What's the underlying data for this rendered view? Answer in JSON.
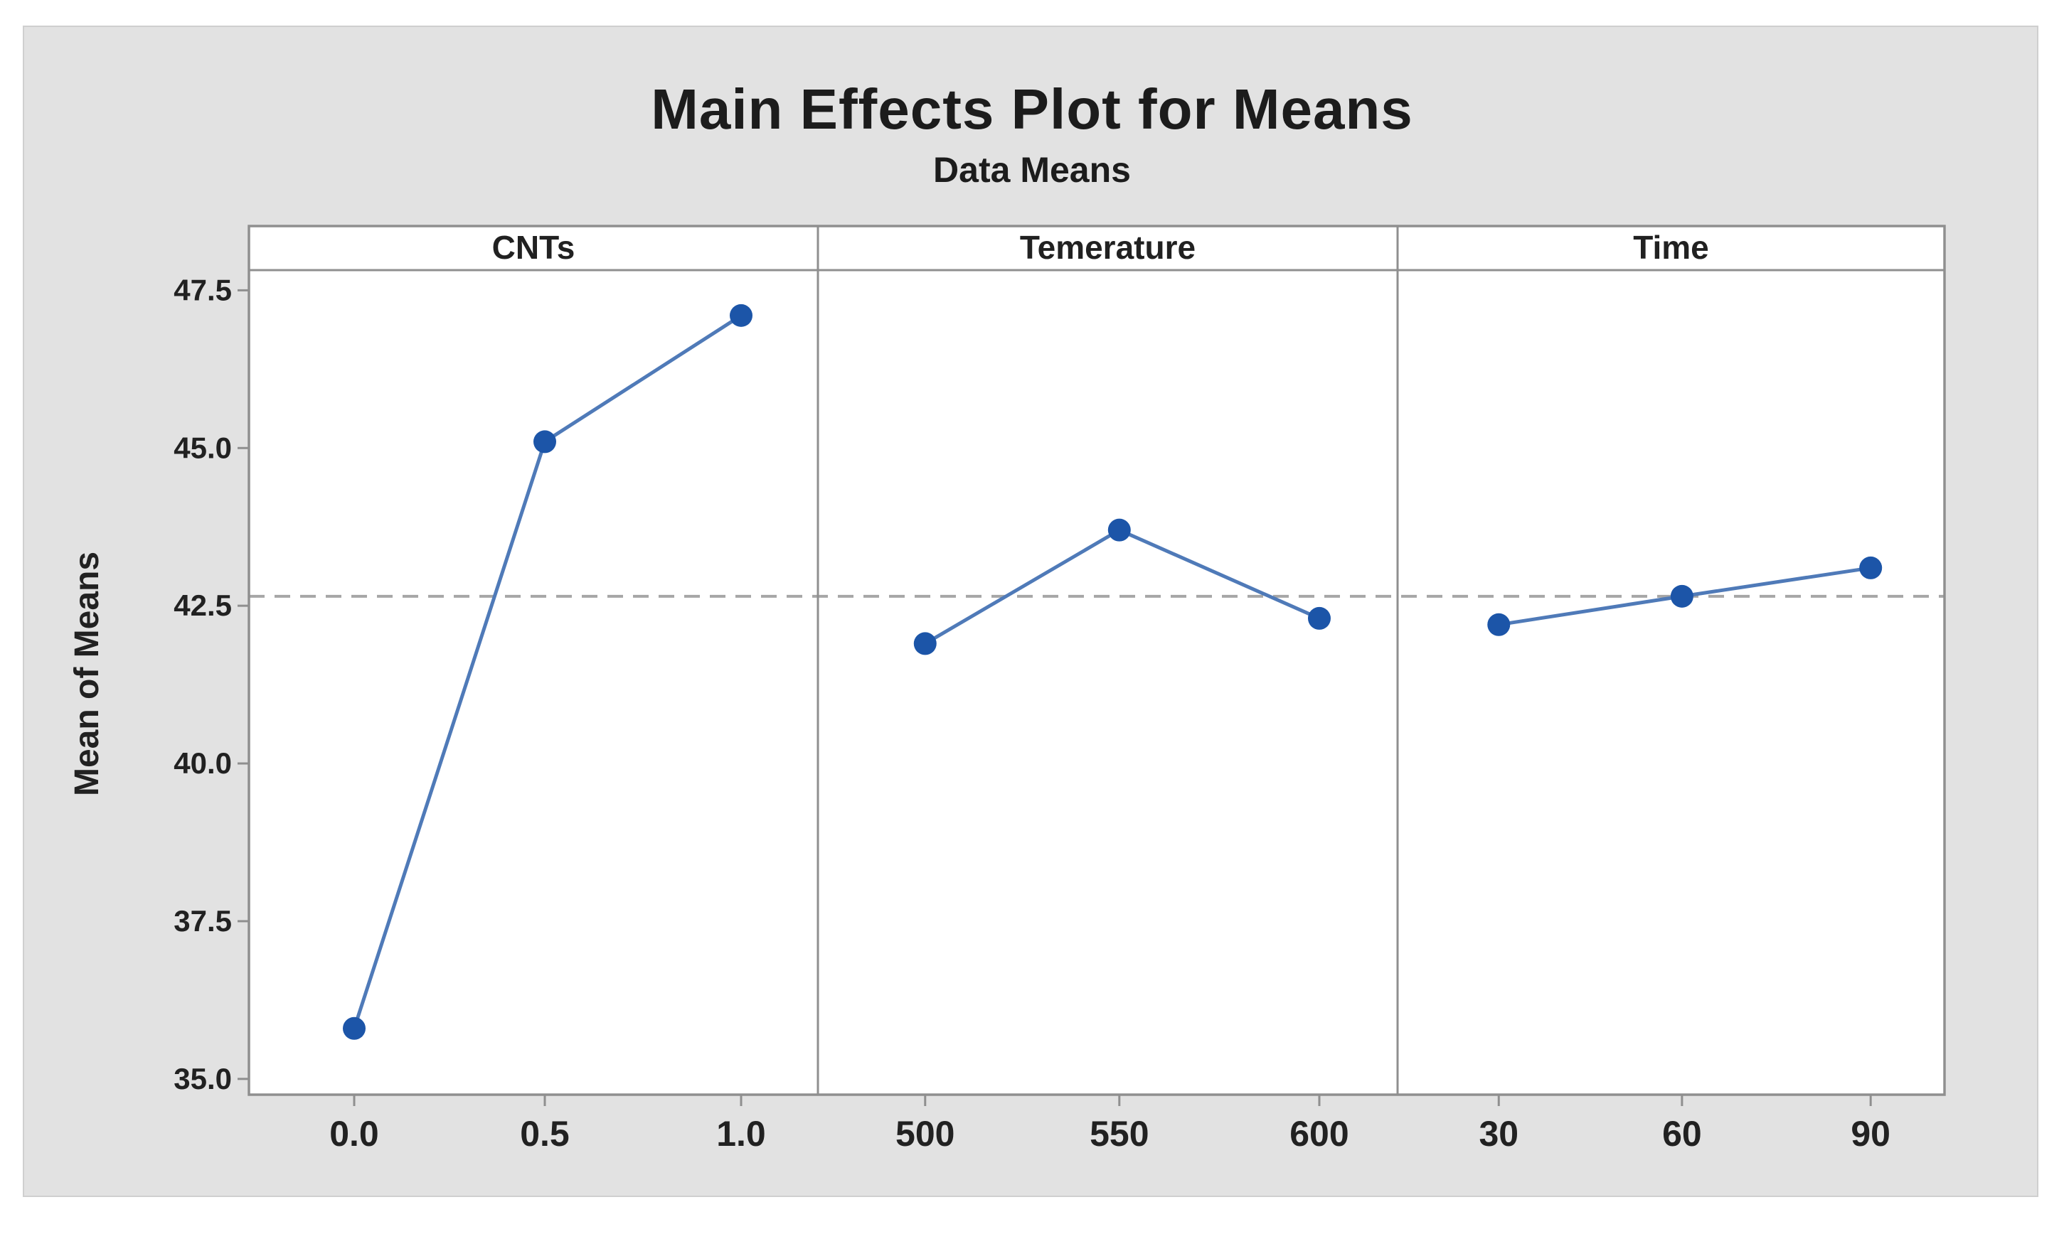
{
  "figure": {
    "canvas_background": "#e2e2e2",
    "page_background": "#ffffff",
    "panel_background": "#ffffff"
  },
  "chart_data": {
    "type": "line",
    "title": "Main Effects Plot for Means",
    "subtitle": "Data Means",
    "ylabel": "Mean of Means",
    "grid": false,
    "legend": false,
    "ylim": [
      34.75,
      47.82
    ],
    "yticks": [
      47.5,
      45.0,
      42.5,
      40.0,
      37.5,
      35.0
    ],
    "ytick_labels": [
      "47.5",
      "45.0",
      "42.5",
      "40.0",
      "37.5",
      "35.0"
    ],
    "reference_line": {
      "value": 42.65,
      "style": "dashed"
    },
    "panels": [
      {
        "label": "CNTs",
        "categories": [
          "0.0",
          "0.5",
          "1.0"
        ],
        "values": [
          35.8,
          45.1,
          47.1
        ]
      },
      {
        "label": "Temerature",
        "categories": [
          "500",
          "550",
          "600"
        ],
        "values": [
          41.9,
          43.7,
          42.3
        ]
      },
      {
        "label": "Time",
        "categories": [
          "30",
          "60",
          "90"
        ],
        "values": [
          42.2,
          42.65,
          43.1
        ]
      }
    ],
    "series_color": "#4f7ab8",
    "marker_color": "#1c55a8",
    "reference_color": "#a6a6a6",
    "axis_color": "#8f8f8f",
    "text_color": "#212121"
  }
}
